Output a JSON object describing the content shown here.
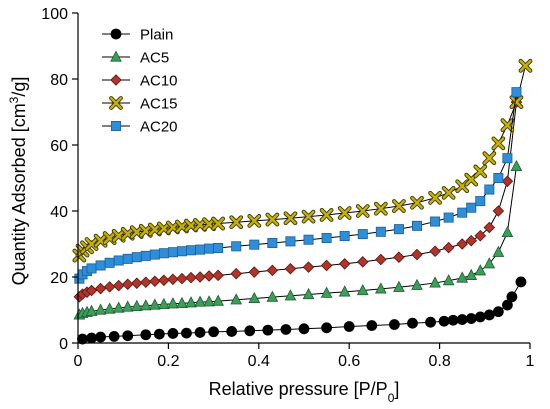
{
  "chart_data": {
    "type": "scatter",
    "xlabel": "Relative pressure [P/P0]",
    "xlabel_parts": [
      "Relative pressure [P/P",
      "0",
      "]"
    ],
    "ylabel": "Quantity Adsorbed [cm3/g]",
    "ylabel_parts": [
      "Quantity Adsorbed [cm",
      "3",
      "/g]"
    ],
    "xlim": [
      0,
      1
    ],
    "ylim": [
      0,
      100
    ],
    "xticks": [
      "0",
      "0.2",
      "0.4",
      "0.6",
      "0.8",
      "1"
    ],
    "yticks": [
      "0",
      "20",
      "40",
      "60",
      "80",
      "100"
    ],
    "legend_position": "top-left",
    "grid": false,
    "series": [
      {
        "name": "Plain",
        "marker": "circle",
        "color": "#000000",
        "x": [
          0.01,
          0.03,
          0.05,
          0.08,
          0.11,
          0.15,
          0.18,
          0.21,
          0.24,
          0.27,
          0.3,
          0.34,
          0.38,
          0.42,
          0.46,
          0.5,
          0.55,
          0.6,
          0.65,
          0.7,
          0.74,
          0.78,
          0.81,
          0.83,
          0.85,
          0.87,
          0.89,
          0.91,
          0.93,
          0.95,
          0.96,
          0.98
        ],
        "y": [
          1.2,
          1.5,
          1.8,
          2.0,
          2.2,
          2.5,
          2.7,
          2.9,
          3.0,
          3.2,
          3.4,
          3.5,
          3.7,
          3.9,
          4.1,
          4.3,
          4.6,
          5.0,
          5.3,
          5.6,
          6.0,
          6.3,
          6.6,
          6.9,
          7.1,
          7.4,
          7.9,
          8.5,
          9.5,
          11.5,
          14.0,
          18.5
        ]
      },
      {
        "name": "AC5",
        "marker": "triangle",
        "color": "#3c9e58",
        "x": [
          0.003,
          0.01,
          0.02,
          0.03,
          0.05,
          0.07,
          0.09,
          0.11,
          0.13,
          0.15,
          0.17,
          0.19,
          0.21,
          0.23,
          0.25,
          0.27,
          0.29,
          0.31,
          0.35,
          0.39,
          0.43,
          0.47,
          0.51,
          0.55,
          0.59,
          0.63,
          0.67,
          0.71,
          0.75,
          0.79,
          0.82,
          0.85,
          0.87,
          0.89,
          0.91,
          0.93,
          0.95,
          0.97
        ],
        "y": [
          8.5,
          9.0,
          9.3,
          9.6,
          10.0,
          10.3,
          10.6,
          10.9,
          11.1,
          11.3,
          11.5,
          11.7,
          11.9,
          12.0,
          12.2,
          12.4,
          12.5,
          12.7,
          13.1,
          13.5,
          13.9,
          14.3,
          14.7,
          15.1,
          15.5,
          15.9,
          16.4,
          16.9,
          17.5,
          18.2,
          18.9,
          19.7,
          20.5,
          21.9,
          24.0,
          27.5,
          33.5,
          53.5
        ]
      },
      {
        "name": "AC10",
        "marker": "diamond",
        "color": "#b0342a",
        "x": [
          0.003,
          0.01,
          0.02,
          0.03,
          0.05,
          0.07,
          0.09,
          0.11,
          0.13,
          0.15,
          0.17,
          0.19,
          0.21,
          0.23,
          0.25,
          0.27,
          0.29,
          0.31,
          0.35,
          0.39,
          0.43,
          0.47,
          0.51,
          0.55,
          0.59,
          0.63,
          0.67,
          0.71,
          0.75,
          0.79,
          0.82,
          0.85,
          0.87,
          0.89,
          0.91,
          0.93,
          0.95,
          0.97
        ],
        "y": [
          14.0,
          14.8,
          15.4,
          15.9,
          16.5,
          17.0,
          17.4,
          17.8,
          18.1,
          18.4,
          18.7,
          19.0,
          19.3,
          19.5,
          19.8,
          20.0,
          20.3,
          20.5,
          21.0,
          21.5,
          22.0,
          22.5,
          23.0,
          23.5,
          24.0,
          24.6,
          25.3,
          26.0,
          26.8,
          27.8,
          28.9,
          30.0,
          31.0,
          32.5,
          35.0,
          40.0,
          49.0,
          73.0
        ]
      },
      {
        "name": "AC15",
        "marker": "x",
        "color": "#c8b400",
        "x": [
          0.003,
          0.01,
          0.02,
          0.03,
          0.05,
          0.07,
          0.09,
          0.11,
          0.13,
          0.15,
          0.17,
          0.19,
          0.21,
          0.23,
          0.25,
          0.27,
          0.29,
          0.31,
          0.35,
          0.39,
          0.43,
          0.47,
          0.51,
          0.55,
          0.59,
          0.63,
          0.67,
          0.71,
          0.75,
          0.79,
          0.82,
          0.85,
          0.87,
          0.89,
          0.91,
          0.93,
          0.95,
          0.97,
          0.99
        ],
        "y": [
          26.5,
          28.0,
          29.0,
          30.0,
          31.0,
          31.8,
          32.5,
          33.1,
          33.6,
          34.0,
          34.4,
          34.7,
          35.0,
          35.3,
          35.6,
          35.8,
          36.0,
          36.2,
          36.6,
          37.0,
          37.4,
          37.8,
          38.3,
          38.8,
          39.4,
          40.0,
          40.7,
          41.5,
          42.5,
          44.0,
          45.5,
          47.5,
          49.5,
          52.0,
          56.0,
          60.5,
          66.0,
          73.0,
          84.0
        ]
      },
      {
        "name": "AC20",
        "marker": "square",
        "color": "#2e8fd8",
        "x": [
          0.003,
          0.01,
          0.02,
          0.03,
          0.05,
          0.07,
          0.09,
          0.11,
          0.13,
          0.15,
          0.17,
          0.19,
          0.21,
          0.23,
          0.25,
          0.27,
          0.29,
          0.31,
          0.35,
          0.39,
          0.43,
          0.47,
          0.51,
          0.55,
          0.59,
          0.63,
          0.67,
          0.71,
          0.75,
          0.79,
          0.82,
          0.85,
          0.87,
          0.89,
          0.91,
          0.93,
          0.95,
          0.97
        ],
        "y": [
          19.5,
          20.8,
          21.8,
          22.6,
          23.5,
          24.3,
          25.0,
          25.5,
          26.0,
          26.4,
          26.8,
          27.2,
          27.5,
          27.8,
          28.1,
          28.3,
          28.6,
          28.8,
          29.3,
          29.8,
          30.3,
          30.8,
          31.3,
          31.8,
          32.4,
          33.0,
          33.7,
          34.5,
          35.5,
          36.8,
          38.0,
          39.5,
          41.0,
          43.0,
          46.5,
          50.0,
          56.0,
          76.0
        ]
      }
    ]
  }
}
